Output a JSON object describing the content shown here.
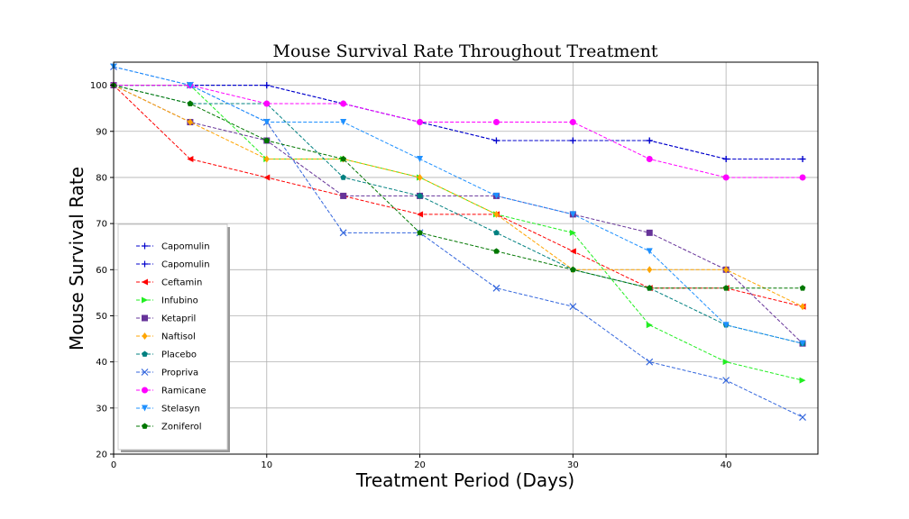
{
  "chart_data": {
    "type": "line",
    "title": "Mouse Survival Rate Throughout Treatment",
    "xlabel": "Treatment Period (Days)",
    "ylabel": "Mouse Survival Rate",
    "xlim": [
      0,
      46
    ],
    "ylim": [
      20,
      105
    ],
    "xticks": [
      0,
      10,
      20,
      30,
      40
    ],
    "yticks": [
      20,
      30,
      40,
      50,
      60,
      70,
      80,
      90,
      100
    ],
    "grid": true,
    "legend_position": "lower-left",
    "x": [
      0,
      5,
      10,
      15,
      20,
      25,
      30,
      35,
      40,
      45
    ],
    "series": [
      {
        "name": "Capomulin",
        "color": "#0000cc",
        "marker": "plus",
        "values": [
          100,
          100,
          100,
          96,
          92,
          88,
          88,
          88,
          84,
          84
        ]
      },
      {
        "name": "Capomulin",
        "color": "#0000cc",
        "marker": "plus",
        "values": [
          100,
          100,
          100,
          96,
          92,
          88,
          88,
          88,
          84,
          84
        ]
      },
      {
        "name": "Ceftamin",
        "color": "#ff0000",
        "marker": "triangle-left",
        "values": [
          100,
          84,
          80,
          76,
          72,
          72,
          64,
          56,
          56,
          52
        ]
      },
      {
        "name": "Infubino",
        "color": "#22ee22",
        "marker": "triangle-right",
        "values": [
          100,
          100,
          84,
          84,
          80,
          72,
          68,
          48,
          40,
          36
        ]
      },
      {
        "name": "Ketapril",
        "color": "#663399",
        "marker": "square",
        "values": [
          100,
          92,
          88,
          76,
          76,
          76,
          72,
          68,
          60,
          44
        ]
      },
      {
        "name": "Naftisol",
        "color": "#ffa500",
        "marker": "diamond",
        "values": [
          100,
          92,
          84,
          84,
          80,
          72,
          60,
          60,
          60,
          52
        ]
      },
      {
        "name": "Placebo",
        "color": "#008080",
        "marker": "pentagon",
        "values": [
          100,
          96,
          96,
          80,
          76,
          68,
          60,
          56,
          48,
          44
        ]
      },
      {
        "name": "Propriva",
        "color": "#3366dd",
        "marker": "x",
        "values": [
          104,
          100,
          92,
          68,
          68,
          56,
          52,
          40,
          36,
          28
        ]
      },
      {
        "name": "Ramicane",
        "color": "#ff00ff",
        "marker": "circle",
        "values": [
          100,
          100,
          96,
          96,
          92,
          92,
          92,
          84,
          80,
          80
        ]
      },
      {
        "name": "Stelasyn",
        "color": "#1e90ff",
        "marker": "triangle-down",
        "values": [
          104,
          100,
          92,
          92,
          84,
          76,
          72,
          64,
          48,
          44
        ]
      },
      {
        "name": "Zoniferol",
        "color": "#007700",
        "marker": "pentagon",
        "values": [
          100,
          96,
          88,
          84,
          68,
          64,
          60,
          56,
          56,
          56
        ]
      }
    ]
  }
}
